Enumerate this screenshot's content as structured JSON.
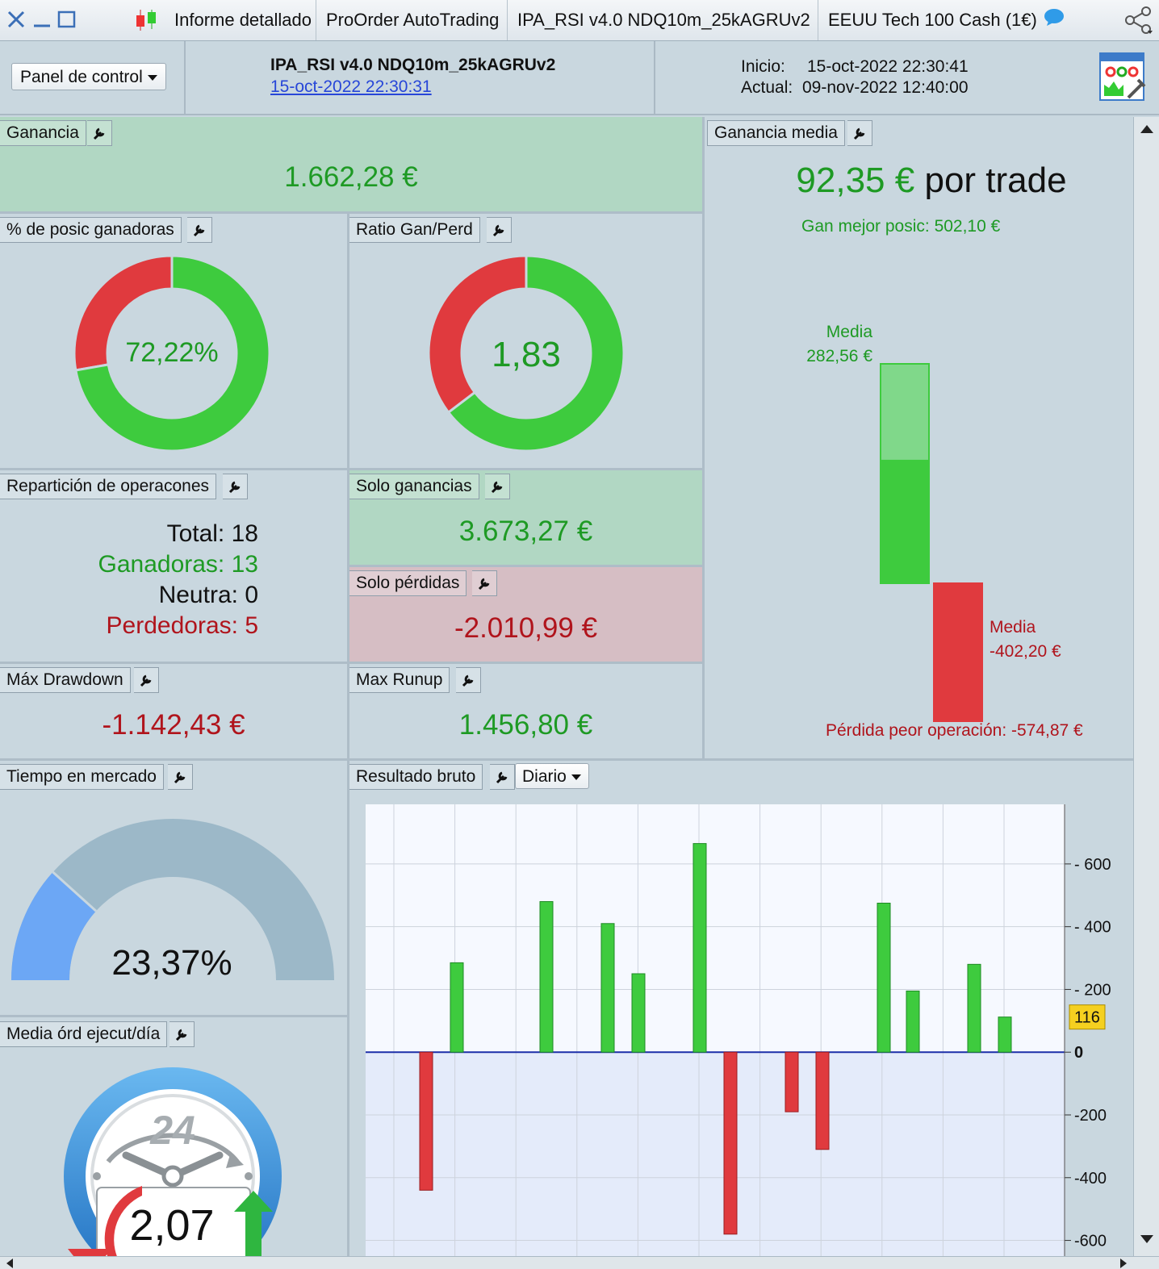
{
  "titlebar": {
    "tabs": [
      "Informe detallado",
      "ProOrder AutoTrading",
      "IPA_RSI v4.0 NDQ10m_25kAGRUv2",
      "EEUU Tech 100 Cash (1€)"
    ]
  },
  "header": {
    "panel_button": "Panel de control",
    "strategy_name": "IPA_RSI v4.0 NDQ10m_25kAGRUv2",
    "strategy_date": "15-oct-2022 22:30:31",
    "start_label": "Inicio:",
    "start_value": "15-oct-2022 22:30:41",
    "current_label": "Actual:",
    "current_value": "09-nov-2022 12:40:00"
  },
  "ganancia": {
    "title": "Ganancia",
    "value": "1.662,28 €"
  },
  "pct_ganadoras": {
    "title": "% de posic ganadoras",
    "value": "72,22%",
    "fraction": 0.7222
  },
  "ratio": {
    "title": "Ratio Gan/Perd",
    "value": "1,83",
    "fraction": 0.6466
  },
  "reparticion": {
    "title": "Repartición de operacones",
    "total_label": "Total:",
    "total": "18",
    "win_label": "Ganadoras:",
    "win": "13",
    "neutral_label": "Neutra:",
    "neutral": "0",
    "loss_label": "Perdedoras:",
    "loss": "5"
  },
  "solo_ganancias": {
    "title": "Solo ganancias",
    "value": "3.673,27 €"
  },
  "solo_perdidas": {
    "title": "Solo pérdidas",
    "value": "-2.010,99 €"
  },
  "drawdown": {
    "title": "Máx Drawdown",
    "value": "-1.142,43 €"
  },
  "runup": {
    "title": "Max Runup",
    "value": "1.456,80 €"
  },
  "ganancia_media": {
    "title": "Ganancia media",
    "value": "92,35 €",
    "suffix": "por trade",
    "best_label": "Gan mejor posic: 502,10 €",
    "avg_win_label": "Media",
    "avg_win_value": "282,56 €",
    "avg_loss_label": "Media",
    "avg_loss_value": "-402,20 €",
    "worst_label": "Pérdida peor operación: -574,87 €",
    "best": 502.1,
    "avg_win": 282.56,
    "avg_loss": -402.2,
    "worst": -574.87
  },
  "tiempo": {
    "title": "Tiempo en mercado",
    "value": "23,37%",
    "fraction": 0.2337
  },
  "media_ordenes": {
    "title": "Media órd ejecut/día",
    "value": "2,07",
    "clock_label": "24"
  },
  "resultado": {
    "title": "Resultado bruto",
    "period": "Diario",
    "marker": "116"
  },
  "chart_data": {
    "type": "bar",
    "title": "",
    "xlabel": "",
    "ylabel": "",
    "ylim": [
      -650,
      790
    ],
    "yticks": [
      600,
      400,
      200,
      0,
      -200,
      -400,
      -600
    ],
    "values": [
      -440,
      285,
      480,
      410,
      250,
      665,
      -580,
      -190,
      -310,
      475,
      195,
      280,
      112
    ],
    "colors": {
      "positive": "#3ecb3e",
      "negative": "#e03a3e"
    }
  }
}
